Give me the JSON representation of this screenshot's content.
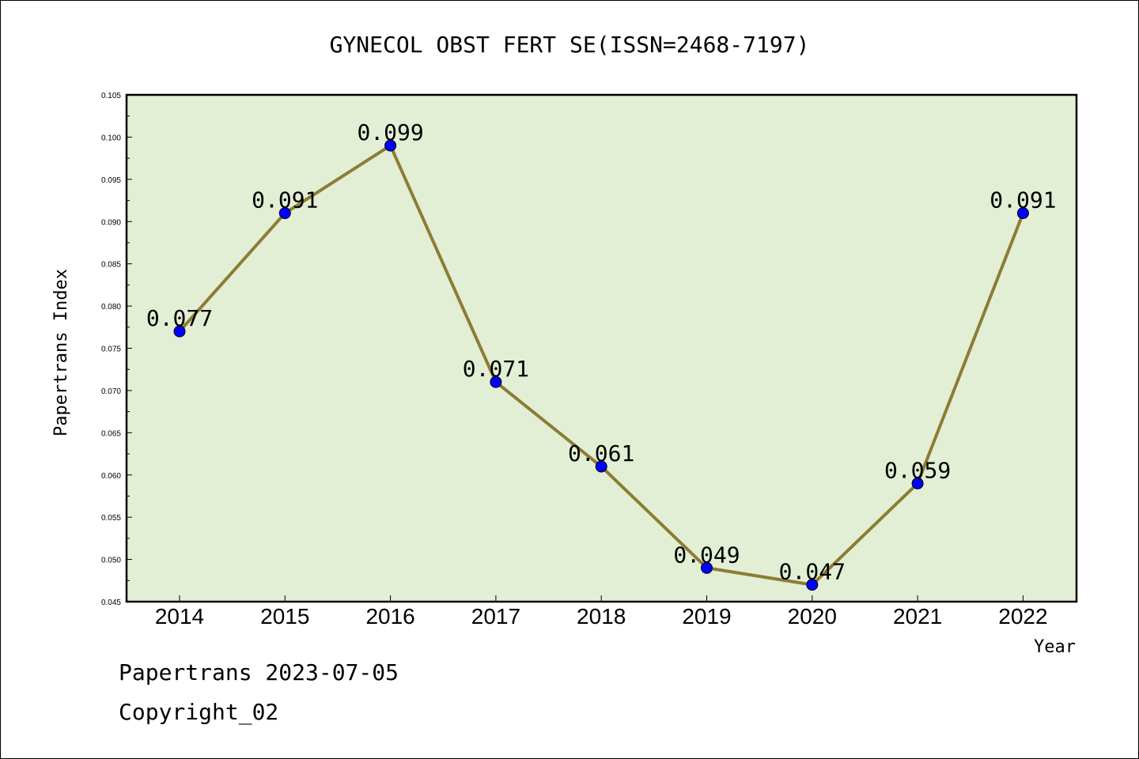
{
  "chart_data": {
    "type": "line",
    "title": "GYNECOL OBST FERT SE(ISSN=2468-7197)",
    "xlabel": "Year",
    "ylabel": "Papertrans Index",
    "categories": [
      "2014",
      "2015",
      "2016",
      "2017",
      "2018",
      "2019",
      "2020",
      "2021",
      "2022"
    ],
    "values": [
      0.077,
      0.091,
      0.099,
      0.071,
      0.061,
      0.049,
      0.047,
      0.059,
      0.091
    ],
    "data_labels": [
      "0.077",
      "0.091",
      "0.099",
      "0.071",
      "0.061",
      "0.049",
      "0.047",
      "0.059",
      "0.091"
    ],
    "ylim": [
      0.045,
      0.105
    ],
    "yticks": [
      "0.045",
      "0.050",
      "0.055",
      "0.060",
      "0.065",
      "0.070",
      "0.075",
      "0.080",
      "0.085",
      "0.090",
      "0.095",
      "0.100",
      "0.105"
    ],
    "grid": false,
    "colors": {
      "plot_background": "#e2efd5",
      "line": "#8b7d35",
      "marker": "#0000ff"
    }
  },
  "footer": {
    "line1": "Papertrans 2023-07-05",
    "line2": "Copyright_02"
  }
}
